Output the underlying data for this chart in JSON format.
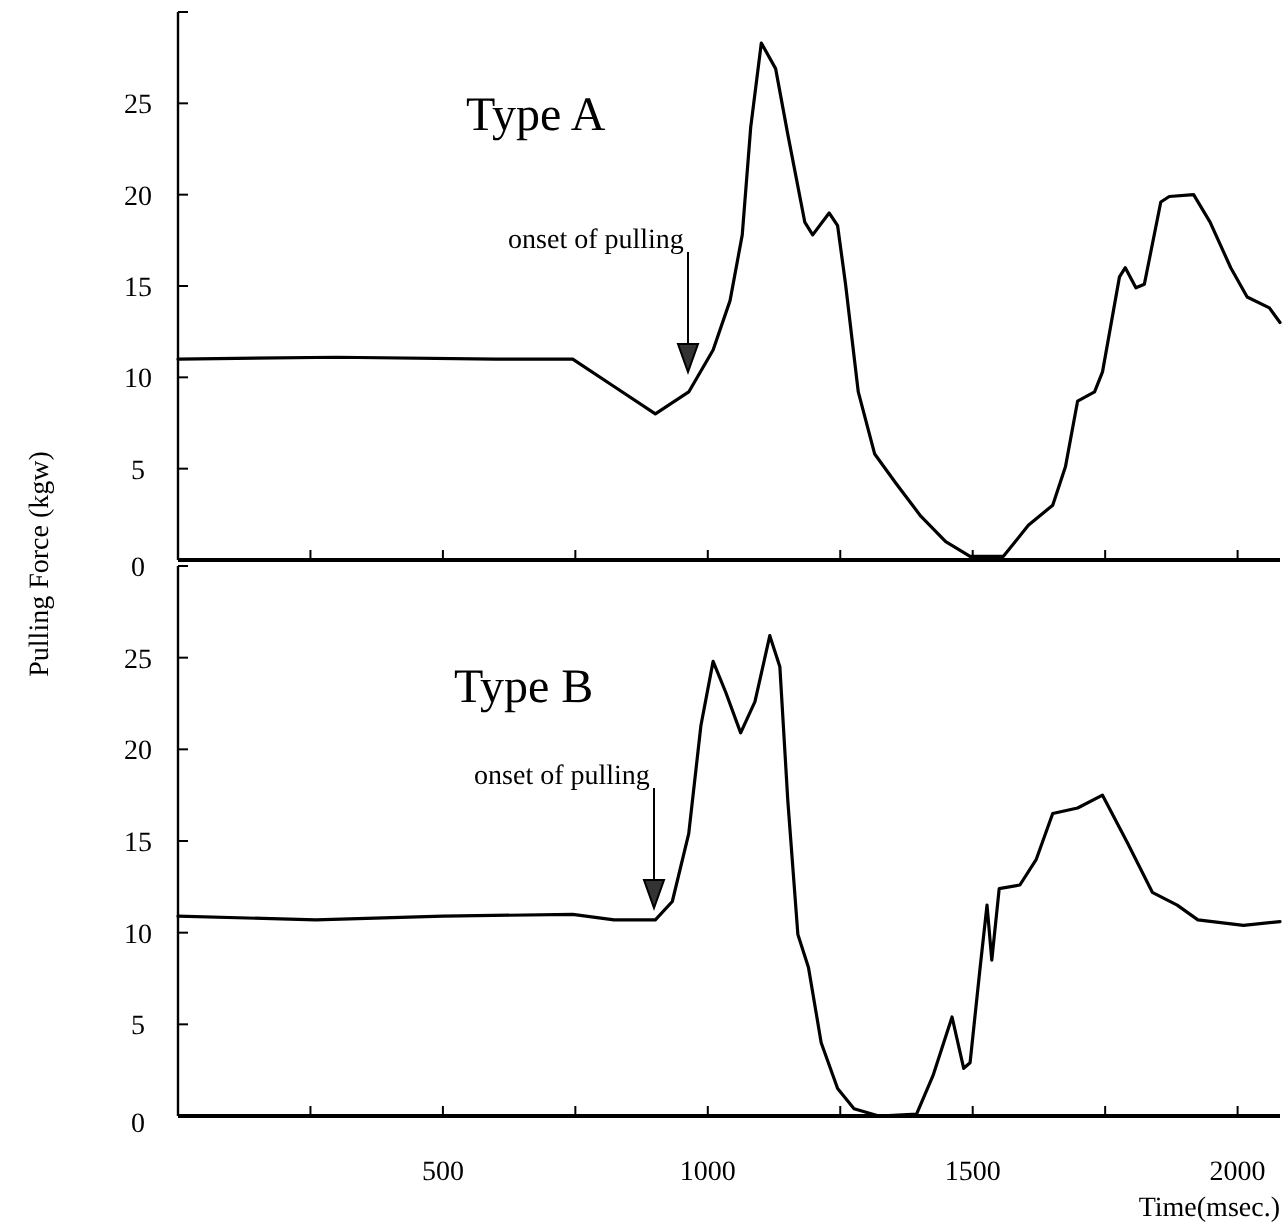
{
  "chart_data": [
    {
      "type": "line",
      "ylabel": "Pulling Force (kgw)",
      "xlim": [
        0,
        2080
      ],
      "ylim": [
        0,
        30
      ],
      "xticks": [
        {
          "value": 250,
          "label": null
        },
        {
          "value": 500,
          "label": null
        },
        {
          "value": 750,
          "label": null
        },
        {
          "value": 1000,
          "label": null
        },
        {
          "value": 1250,
          "label": null
        },
        {
          "value": 1500,
          "label": null
        },
        {
          "value": 1750,
          "label": null
        },
        {
          "value": 2000,
          "label": null
        }
      ],
      "yticks": [
        0,
        5,
        10,
        15,
        20,
        25,
        {
          "value": 30,
          "label": null
        }
      ],
      "tick_labels": "y",
      "grid": false,
      "marker": "none",
      "line_style": "solid",
      "annotations": [
        "Type A",
        "onset of pulling"
      ],
      "series": [
        {
          "color": "#000000",
          "x": [
            0,
            300,
            600,
            745,
            823,
            901,
            964,
            1010,
            1042,
            1065,
            1081,
            1101,
            1128,
            1151,
            1183,
            1198,
            1229,
            1245,
            1260,
            1284,
            1315,
            1355,
            1402,
            1449,
            1495,
            1558,
            1605,
            1651,
            1675,
            1698,
            1730,
            1745,
            1777,
            1788,
            1808,
            1824,
            1855,
            1871,
            1917,
            1948,
            1987,
            2018,
            2060,
            2080
          ],
          "values": [
            11,
            11.1,
            11,
            11,
            9.5,
            8,
            9.2,
            11.5,
            14.2,
            17.8,
            23.7,
            28.3,
            26.9,
            23.3,
            18.5,
            17.8,
            19,
            18.3,
            15.1,
            9.2,
            5.8,
            4.2,
            2.4,
            1,
            0.2,
            0.2,
            1.9,
            3,
            5.1,
            8.7,
            9.2,
            10.3,
            15.5,
            16,
            14.9,
            15.1,
            19.6,
            19.9,
            20,
            18.5,
            16,
            14.4,
            13.8,
            13
          ]
        }
      ]
    },
    {
      "type": "line",
      "xlabel": "Time(msec.)",
      "xlim": [
        0,
        2080
      ],
      "ylim": [
        0,
        30
      ],
      "xticks": [
        {
          "value": 250,
          "label": null
        },
        500,
        {
          "value": 750,
          "label": null
        },
        1000,
        {
          "value": 1250,
          "label": null
        },
        1500,
        {
          "value": 1750,
          "label": null
        },
        2000
      ],
      "yticks": [
        0,
        5,
        10,
        15,
        20,
        25,
        {
          "value": 30,
          "label": null
        }
      ],
      "grid": false,
      "marker": "none",
      "line_style": "solid",
      "annotations": [
        "Type B",
        "onset of pulling"
      ],
      "series": [
        {
          "color": "#000000",
          "x": [
            0,
            260,
            500,
            745,
            823,
            901,
            933,
            964,
            987,
            1010,
            1034,
            1062,
            1089,
            1117,
            1136,
            1151,
            1170,
            1190,
            1214,
            1245,
            1276,
            1323,
            1394,
            1425,
            1461,
            1483,
            1495,
            1514,
            1527,
            1536,
            1550,
            1589,
            1620,
            1651,
            1698,
            1745,
            1792,
            1839,
            1886,
            1925,
            2011,
            2080
          ],
          "values": [
            10.9,
            10.7,
            10.9,
            11,
            10.7,
            10.7,
            11.7,
            15.4,
            21.3,
            24.8,
            23.1,
            20.9,
            22.6,
            26.2,
            24.5,
            17.2,
            9.9,
            8.1,
            4,
            1.5,
            0.4,
            0,
            0.1,
            2.2,
            5.4,
            2.6,
            2.9,
            8.1,
            11.5,
            8.5,
            12.4,
            12.6,
            14,
            16.5,
            16.8,
            17.5,
            14.9,
            12.2,
            11.5,
            10.7,
            10.4,
            10.6
          ]
        }
      ]
    }
  ]
}
